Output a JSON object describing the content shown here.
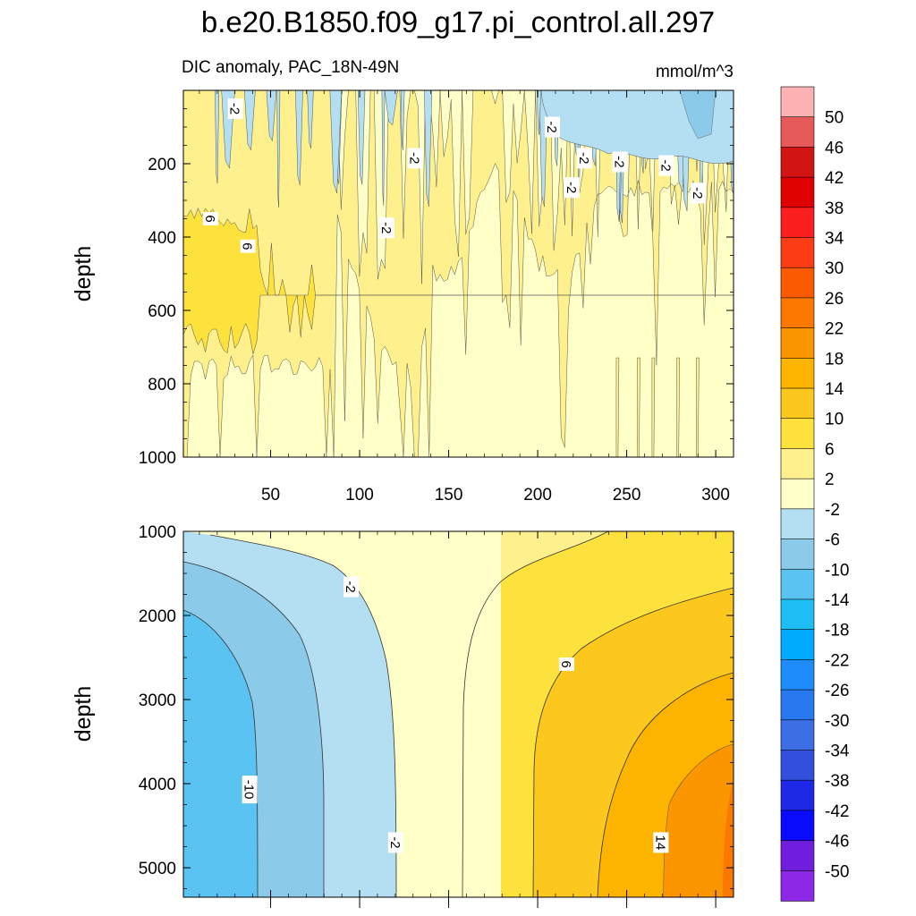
{
  "title": "b.e20.B1850.f09_g17.pi_control.all.297",
  "chart_data": [
    {
      "type": "contour",
      "panel": "upper",
      "subtitle_left": "DIC anomaly, PAC_18N-49N",
      "subtitle_right": "mmol/m^3",
      "ylabel": "depth",
      "xlabel": "",
      "xlim": [
        1,
        310
      ],
      "ylim": [
        1000,
        0
      ],
      "x_ticks": [
        "50",
        "100",
        "150",
        "200",
        "250",
        "300"
      ],
      "y_ticks": [
        "200",
        "400",
        "600",
        "800",
        "1000"
      ],
      "x_tick_values": [
        50,
        100,
        150,
        200,
        250,
        300
      ],
      "y_tick_values": [
        200,
        400,
        600,
        800,
        1000
      ],
      "contour_labels": [
        {
          "text": "-2",
          "x": 30,
          "y": 50
        },
        {
          "text": "-2",
          "x": 131,
          "y": 185
        },
        {
          "text": "-2",
          "x": 115,
          "y": 375
        },
        {
          "text": "-2",
          "x": 208,
          "y": 100
        },
        {
          "text": "-2",
          "x": 226,
          "y": 185
        },
        {
          "text": "-2",
          "x": 246,
          "y": 195
        },
        {
          "text": "-2",
          "x": 272,
          "y": 205
        },
        {
          "text": "-2",
          "x": 219,
          "y": 265
        },
        {
          "text": "-2",
          "x": 290,
          "y": 280
        },
        {
          "text": "6",
          "x": 16,
          "y": 350
        },
        {
          "text": "6",
          "x": 37,
          "y": 425
        }
      ]
    },
    {
      "type": "contour",
      "panel": "lower",
      "ylabel": "depth",
      "xlabel": "",
      "xlim": [
        1,
        310
      ],
      "ylim": [
        5350,
        1000
      ],
      "x_ticks": [],
      "y_ticks": [
        "1000",
        "2000",
        "3000",
        "4000",
        "5000"
      ],
      "y_tick_values": [
        1000,
        2000,
        3000,
        4000,
        5000
      ],
      "contour_labels": [
        {
          "text": "-2",
          "x": 95,
          "y": 1660
        },
        {
          "text": "6",
          "x": 216,
          "y": 2580
        },
        {
          "text": "-10",
          "x": 38,
          "y": 4070
        },
        {
          "text": "-2",
          "x": 120,
          "y": 4700
        },
        {
          "text": "14",
          "x": 269,
          "y": 4700
        }
      ]
    }
  ],
  "colorbar": {
    "labels": [
      "50",
      "46",
      "42",
      "38",
      "34",
      "30",
      "26",
      "22",
      "18",
      "14",
      "10",
      "6",
      "2",
      "-2",
      "-6",
      "-10",
      "-14",
      "-18",
      "-22",
      "-26",
      "-30",
      "-34",
      "-38",
      "-42",
      "-46",
      "-50"
    ],
    "colors": [
      "#fcb2b2",
      "#e65a5a",
      "#d21414",
      "#e10000",
      "#fa1e1e",
      "#fc3c14",
      "#fc5a00",
      "#fc7800",
      "#fc9600",
      "#fcb400",
      "#fcc81e",
      "#fde13c",
      "#fef08c",
      "#ffffc8",
      "#b4def2",
      "#8ccaea",
      "#5ac3f2",
      "#1ebef5",
      "#00aafc",
      "#1e8cfa",
      "#2878f0",
      "#3c6ee6",
      "#3250dc",
      "#1e28e6",
      "#0a0afc",
      "#6e1edc",
      "#8c28e6"
    ]
  },
  "colors": {
    "c_m14": "#5ac3f2",
    "c_m10": "#8ccaea",
    "c_m6": "#b4def2",
    "c_m2": "#ffffc8",
    "c_2": "#fef08c",
    "c_6": "#fde13c",
    "c_10": "#fcc81e",
    "c_14": "#fcb400"
  }
}
